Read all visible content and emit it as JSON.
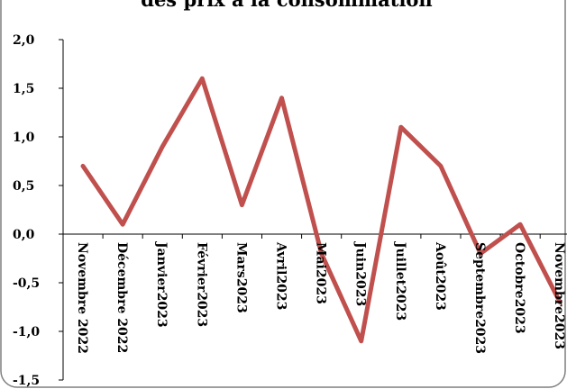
{
  "chart_data": {
    "type": "line",
    "title": "des prix à la consommation",
    "categories": [
      "Novembre 2022",
      "Décembre 2022",
      "Janvier2023",
      "Février2023",
      "Mars2023",
      "Avril2023",
      "Mai2023",
      "Juin2023",
      "Juillet2023",
      "Août2023",
      "Septembre2023",
      "Octobre2023",
      "Novembre2023"
    ],
    "series": [
      {
        "values": [
          0.7,
          0.1,
          0.9,
          1.6,
          0.3,
          1.4,
          -0.2,
          -1.1,
          1.1,
          0.7,
          -0.2,
          0.1,
          -0.7
        ]
      }
    ],
    "yticks": [
      "2,0",
      "1,5",
      "1,0",
      "0,5",
      "0,0",
      "-0,5",
      "-1,0",
      "-1,5"
    ],
    "ylim": [
      -1.5,
      2.0
    ],
    "colors": {
      "line": "#c0504d",
      "frame": "#7f7f7f",
      "axis": "#000000"
    },
    "grid": false,
    "legend": "none"
  }
}
